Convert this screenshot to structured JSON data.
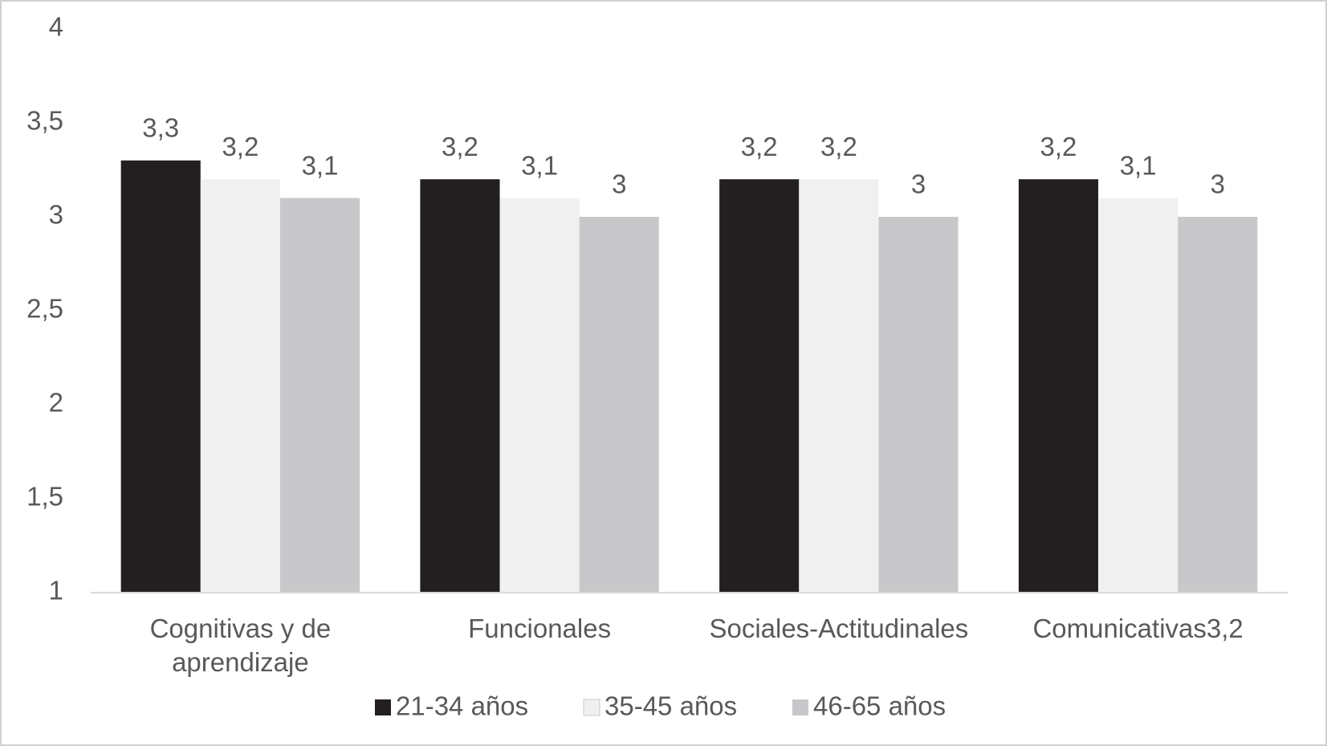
{
  "chart_data": {
    "type": "bar",
    "categories": [
      "Cognitivas y de aprendizaje",
      "Funcionales",
      "Sociales-Actitudinales",
      "Comunicativas3,2"
    ],
    "series": [
      {
        "name": "21-34 años",
        "color": "#231f20",
        "values": [
          3.3,
          3.2,
          3.2,
          3.2
        ],
        "value_labels": [
          "3,3",
          "3,2",
          "3,2",
          "3,2"
        ]
      },
      {
        "name": "35-45 años",
        "color": "#f0f0f0",
        "values": [
          3.2,
          3.1,
          3.2,
          3.1
        ],
        "value_labels": [
          "3,2",
          "3,1",
          "3,2",
          "3,1"
        ]
      },
      {
        "name": "46-65 años",
        "color": "#c8c8ca",
        "values": [
          3.1,
          3,
          3,
          3
        ],
        "value_labels": [
          "3,1",
          "3",
          "3",
          "3"
        ]
      }
    ],
    "ylim": [
      1,
      4
    ],
    "yticks": [
      1,
      {
        "value": 1.5,
        "label": "1,5"
      },
      2,
      {
        "value": 2.5,
        "label": "2,5"
      },
      3,
      {
        "value": 3.5,
        "label": "3,5"
      },
      4
    ],
    "grid": false,
    "legend": "bottom"
  }
}
